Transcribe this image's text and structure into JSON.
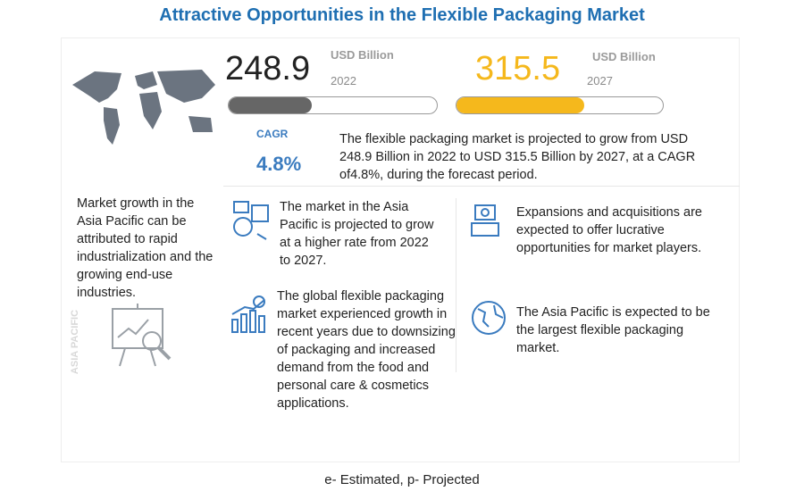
{
  "title": "Attractive Opportunities in the Flexible Packaging Market",
  "stats": [
    {
      "value": "248.9",
      "unit": "USD Billion",
      "year": "2022"
    },
    {
      "value": "315.5",
      "unit": "USD Billion",
      "year": "2027"
    }
  ],
  "cagr": {
    "label": "CAGR",
    "value": "4.8%"
  },
  "summary": "The flexible packaging market is projected to grow from USD 248.9 Billion in 2022 to USD 315.5 Billion by 2027, at a CAGR of4.8%, during the forecast period.",
  "side_note": "Market growth in the Asia Pacific can be attributed to rapid industrialization and the growing end-use industries.",
  "side_label": "ASIA PACIFIC",
  "insights": [
    "The market in the Asia Pacific is projected to grow at a higher rate from 2022 to 2027.",
    "Expansions and acquisitions are expected to offer lucrative opportunities for market players.",
    "The global flexible packaging market experienced growth in recent years due to downsizing of packaging and increased demand from the food and personal care & cosmetics applications.",
    "The Asia Pacific is expected to be the largest flexible packaging market."
  ],
  "footnote": "e- Estimated, p- Projected"
}
